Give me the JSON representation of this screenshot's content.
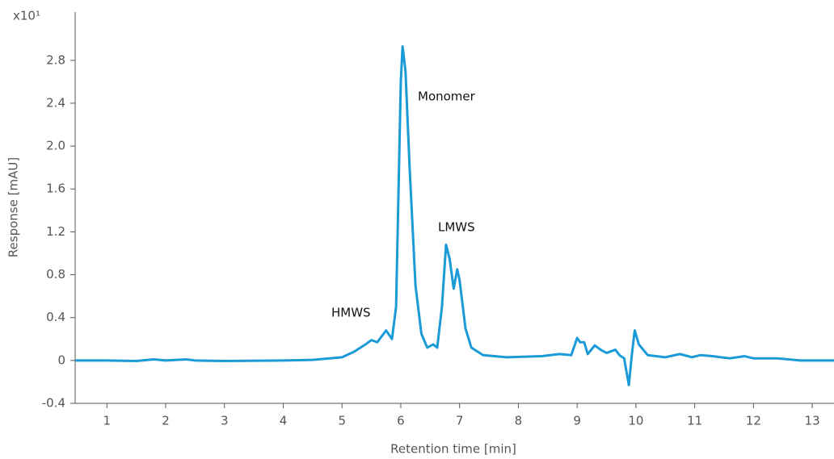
{
  "chart_data": {
    "type": "line",
    "scale_label": "x10¹",
    "xlabel": "Retention time [min]",
    "ylabel": "Response [mAU]",
    "annotations": [
      "HMWS",
      "Monomer",
      "LMWS"
    ],
    "color": "#1a9bd7",
    "grid": false,
    "xlim": [
      0.46,
      13.37
    ],
    "ylim": [
      -0.4,
      3.25
    ],
    "xticks": [
      1,
      2,
      3,
      4,
      5,
      6,
      7,
      8,
      9,
      10,
      11,
      12,
      13
    ],
    "yticks": [
      -0.4,
      0,
      0.4,
      0.8,
      1.2,
      1.6,
      {
        "value": 2,
        "label": "2.0"
      },
      2.4,
      2.8
    ],
    "x": [
      0.46,
      1.0,
      1.5,
      1.8,
      2.0,
      2.35,
      2.5,
      3.0,
      4.0,
      4.5,
      5.0,
      5.2,
      5.4,
      5.5,
      5.6,
      5.75,
      5.85,
      5.92,
      6.0,
      6.03,
      6.08,
      6.15,
      6.25,
      6.35,
      6.45,
      6.55,
      6.62,
      6.7,
      6.77,
      6.83,
      6.9,
      6.96,
      7.0,
      7.1,
      7.2,
      7.4,
      7.8,
      8.4,
      8.7,
      8.9,
      9.0,
      9.05,
      9.12,
      9.18,
      9.3,
      9.4,
      9.5,
      9.65,
      9.72,
      9.8,
      9.88,
      9.93,
      9.98,
      10.05,
      10.2,
      10.5,
      10.75,
      10.95,
      11.1,
      11.3,
      11.6,
      11.85,
      12.0,
      12.4,
      12.8,
      13.37
    ],
    "values": [
      0.0,
      0.0,
      -0.005,
      0.01,
      0.0,
      0.01,
      0.0,
      -0.005,
      0.0,
      0.005,
      0.03,
      0.08,
      0.15,
      0.19,
      0.17,
      0.28,
      0.2,
      0.5,
      2.6,
      2.93,
      2.7,
      1.8,
      0.7,
      0.25,
      0.12,
      0.15,
      0.12,
      0.5,
      1.08,
      0.95,
      0.67,
      0.85,
      0.75,
      0.3,
      0.12,
      0.05,
      0.03,
      0.04,
      0.06,
      0.05,
      0.21,
      0.17,
      0.17,
      0.06,
      0.14,
      0.1,
      0.07,
      0.1,
      0.05,
      0.02,
      -0.23,
      0.05,
      0.28,
      0.15,
      0.05,
      0.03,
      0.06,
      0.03,
      0.05,
      0.04,
      0.02,
      0.04,
      0.02,
      0.02,
      0.0,
      0.0
    ]
  }
}
